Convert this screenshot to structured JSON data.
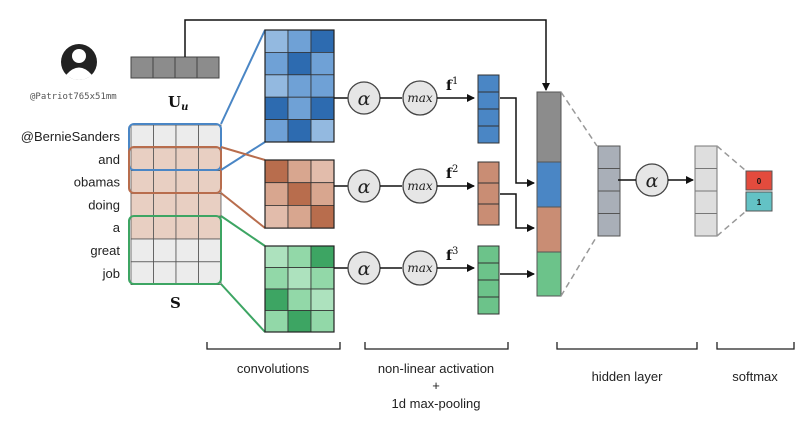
{
  "user": {
    "handle": "@Patriot765x51mm",
    "embedding_label": "U",
    "embedding_subscript": "u"
  },
  "sentence": {
    "words": [
      "@BernieSanders",
      "and",
      "obamas",
      "doing",
      "a",
      "great",
      "job"
    ],
    "matrix_label": "S"
  },
  "ops": {
    "activation_symbol": "α",
    "pool_symbol": "max",
    "feature_base": "f",
    "feature_indices": [
      "1",
      "2",
      "3"
    ]
  },
  "softmax_outputs": [
    "0",
    "1"
  ],
  "captions": {
    "convolutions": "convolutions",
    "nonlinear_line1": "non-linear activation",
    "nonlinear_line2": "+",
    "nonlinear_line3": "1d max-pooling",
    "hidden": "hidden layer",
    "softmax": "softmax"
  },
  "colors": {
    "blue": "#4a86c5",
    "blue_dark": "#2d6bb0",
    "red": "#c98d74",
    "red_dark": "#b86d4d",
    "green": "#6cc38a",
    "green_dark": "#3da563",
    "gray": "#8c8c8c",
    "hidden_gray": "#a9afb8",
    "softmax_red": "#e34b3d",
    "softmax_teal": "#63c2c5"
  }
}
